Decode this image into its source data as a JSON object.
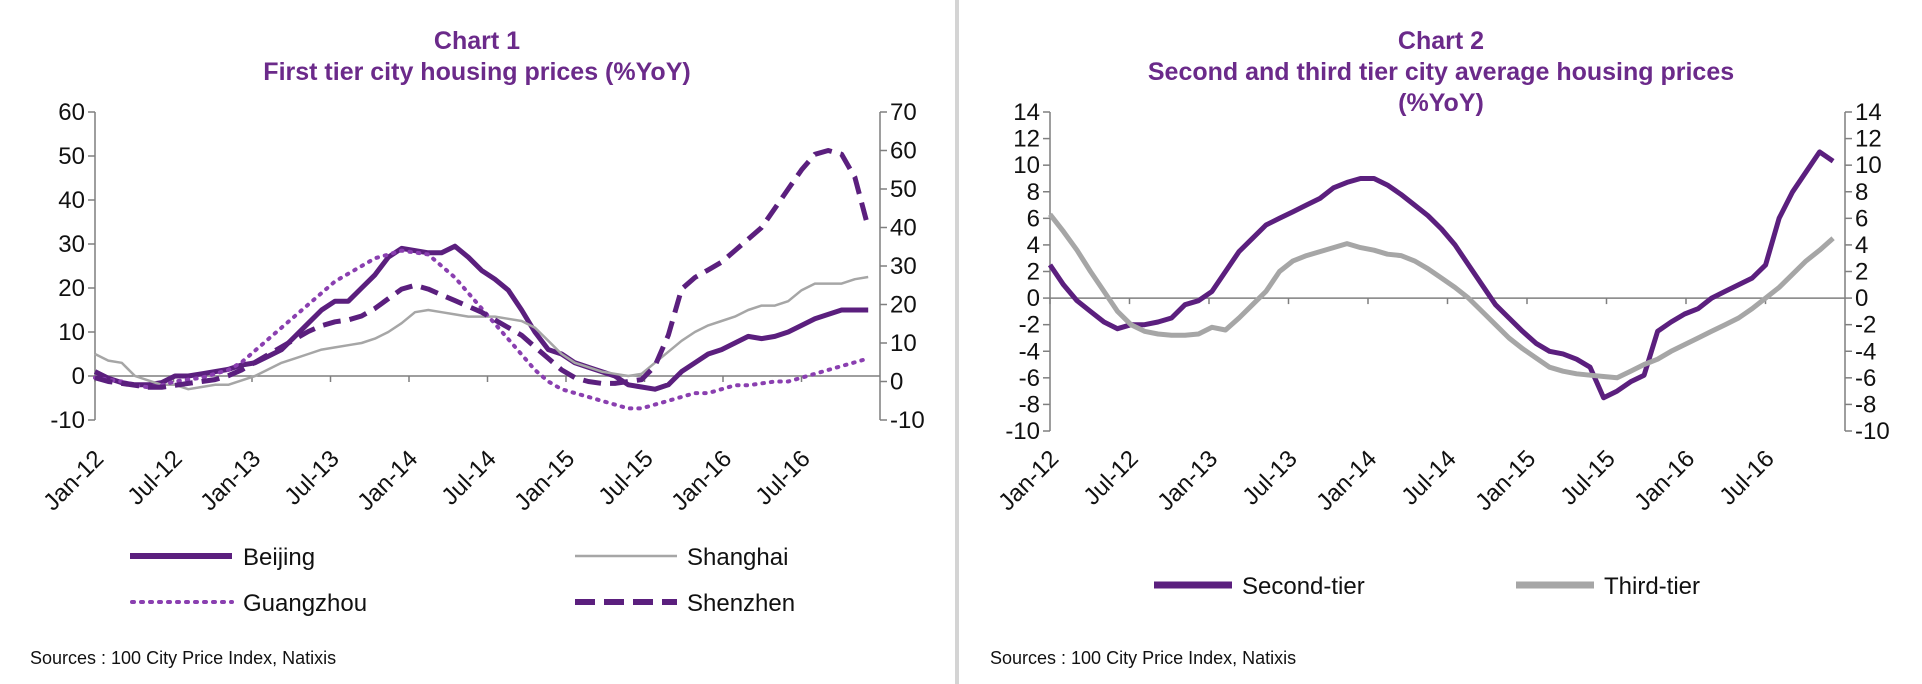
{
  "colors": {
    "purple": "#5b1f7e",
    "title": "#6b2a8a",
    "grey": "#a6a6a6",
    "dotted": "#8a3fb0",
    "axis": "#7f7f7f"
  },
  "chart_data": [
    {
      "type": "line",
      "title_line1": "Chart 1",
      "title_line2": "First tier city housing prices (%YoY)",
      "source": "Sources : 100 City Price Index,  Natixis",
      "x_labels": [
        "Jan-12",
        "Jul-12",
        "Jan-13",
        "Jul-13",
        "Jan-14",
        "Jul-14",
        "Jan-15",
        "Jul-15",
        "Jan-16",
        "Jul-16"
      ],
      "y_left": {
        "ticks": [
          60,
          50,
          40,
          30,
          20,
          10,
          0,
          -10
        ],
        "ylim": [
          -10,
          60
        ]
      },
      "y_right": {
        "ticks": [
          70,
          60,
          50,
          40,
          30,
          20,
          10,
          0,
          -10
        ],
        "ylim": [
          -10,
          70
        ]
      },
      "series": [
        {
          "name": "Beijing",
          "axis": "left",
          "style": "solid-thick",
          "values": [
            1,
            -0.5,
            -1.5,
            -2,
            -2,
            -1.5,
            0,
            0,
            0.5,
            1,
            1.5,
            2.5,
            3,
            4.5,
            6,
            9,
            12,
            15,
            17,
            17,
            20,
            23,
            27,
            29,
            28.5,
            28,
            28,
            29.5,
            27,
            24,
            22,
            19.5,
            15,
            10,
            6,
            5,
            3,
            2,
            1,
            0,
            -2,
            -2.5,
            -3,
            -2,
            1,
            3,
            5,
            6,
            7.5,
            9,
            8.5,
            9,
            10,
            11.5,
            13,
            14,
            15,
            15,
            15
          ]
        },
        {
          "name": "Shanghai",
          "axis": "left",
          "style": "solid-thin",
          "values": [
            5,
            3.5,
            3,
            0,
            -1,
            -2,
            -2,
            -3,
            -2.5,
            -2,
            -2,
            -1,
            0,
            1.5,
            3,
            4,
            5,
            6,
            6.5,
            7,
            7.5,
            8.5,
            10,
            12,
            14.5,
            15,
            14.5,
            14,
            13.5,
            13.5,
            13.5,
            13,
            12.5,
            11,
            8,
            5,
            3,
            2,
            1,
            0.5,
            0,
            0.5,
            3,
            5.5,
            8,
            10,
            11.5,
            12.5,
            13.5,
            15,
            16,
            16,
            17,
            19.5,
            21,
            21,
            21,
            22,
            22.5
          ]
        },
        {
          "name": "Guangzhou",
          "axis": "right",
          "style": "dotted",
          "values": [
            1,
            0.5,
            0,
            -1,
            -1.5,
            -1,
            0,
            0.5,
            1,
            2,
            3,
            5,
            8,
            11,
            14,
            17,
            20,
            23,
            26,
            28,
            30,
            32,
            33,
            34,
            33.5,
            33,
            30,
            27,
            23,
            19,
            15,
            11,
            7,
            3,
            0,
            -2,
            -3,
            -4,
            -5,
            -6,
            -7,
            -7,
            -6,
            -5,
            -4,
            -3,
            -3,
            -2,
            -1,
            -1,
            -0.5,
            0,
            0,
            1,
            2,
            3,
            4,
            5,
            6
          ]
        },
        {
          "name": "Shenzhen",
          "axis": "right",
          "style": "dashed",
          "values": [
            1,
            0,
            -0.5,
            -1,
            -1.5,
            -1.5,
            -1,
            -0.5,
            0,
            0.5,
            1.5,
            3,
            5,
            7,
            9,
            11,
            13,
            14.5,
            15.5,
            16,
            17,
            19,
            21.5,
            24,
            25,
            24,
            22.5,
            21,
            19.5,
            18,
            16,
            14,
            12,
            9,
            6,
            3,
            1,
            0,
            -0.5,
            -0.5,
            0,
            0.5,
            4,
            12,
            24,
            27,
            29,
            31,
            34,
            37,
            40,
            45,
            50,
            55,
            59,
            60,
            59,
            53,
            40
          ]
        }
      ]
    },
    {
      "type": "line",
      "title_line1": "Chart 2",
      "title_line2": "Second and third tier city average housing prices",
      "title_line3": "(%YoY)",
      "source": "Sources : 100 City Price Index,  Natixis",
      "x_labels": [
        "Jan-12",
        "Jul-12",
        "Jan-13",
        "Jul-13",
        "Jan-14",
        "Jul-14",
        "Jan-15",
        "Jul-15",
        "Jan-16",
        "Jul-16"
      ],
      "y_left": {
        "ticks": [
          14,
          12,
          10,
          8,
          6,
          4,
          2,
          0,
          -2,
          -4,
          -6,
          -8,
          -10
        ],
        "ylim": [
          -10,
          14
        ]
      },
      "y_right": {
        "ticks": [
          14,
          12,
          10,
          8,
          6,
          4,
          2,
          0,
          -2,
          -4,
          -6,
          -8,
          -10
        ],
        "ylim": [
          -10,
          14
        ]
      },
      "series": [
        {
          "name": "Second-tier",
          "axis": "left",
          "style": "solid-thick",
          "values": [
            2.5,
            1,
            -0.2,
            -1,
            -1.8,
            -2.3,
            -2,
            -2,
            -1.8,
            -1.5,
            -0.5,
            -0.2,
            0.5,
            2,
            3.5,
            4.5,
            5.5,
            6,
            6.5,
            7,
            7.5,
            8.3,
            8.7,
            9,
            9,
            8.5,
            7.8,
            7,
            6.2,
            5.2,
            4,
            2.5,
            1,
            -0.5,
            -1.5,
            -2.5,
            -3.4,
            -4,
            -4.2,
            -4.6,
            -5.2,
            -7.5,
            -7,
            -6.3,
            -5.8,
            -2.5,
            -1.8,
            -1.2,
            -0.8,
            0,
            0.5,
            1,
            1.5,
            2.5,
            6,
            8,
            9.5,
            11,
            10.3
          ]
        },
        {
          "name": "Third-tier",
          "axis": "left",
          "style": "solid-grey",
          "values": [
            6.3,
            5,
            3.6,
            2,
            0.5,
            -1,
            -2,
            -2.5,
            -2.7,
            -2.8,
            -2.8,
            -2.7,
            -2.2,
            -2.4,
            -1.5,
            -0.5,
            0.5,
            2,
            2.8,
            3.2,
            3.5,
            3.8,
            4.1,
            3.8,
            3.6,
            3.3,
            3.2,
            2.8,
            2.2,
            1.5,
            0.8,
            0,
            -1,
            -2,
            -3,
            -3.8,
            -4.5,
            -5.2,
            -5.5,
            -5.7,
            -5.8,
            -5.9,
            -6,
            -5.5,
            -5,
            -4.6,
            -4,
            -3.5,
            -3,
            -2.5,
            -2,
            -1.5,
            -0.8,
            0,
            0.8,
            1.8,
            2.8,
            3.6,
            4.5
          ]
        }
      ]
    }
  ]
}
